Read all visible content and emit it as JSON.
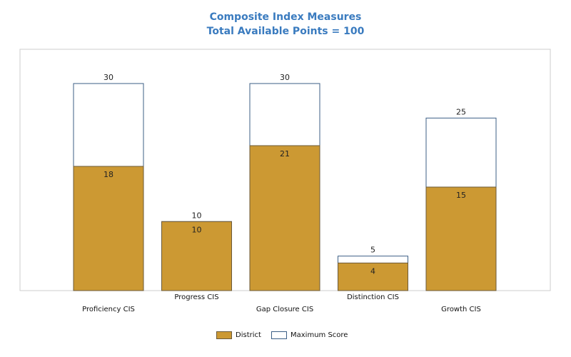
{
  "chart_data": {
    "type": "bar",
    "title": "Composite Index Measures",
    "subtitle": "Total Available Points = 100",
    "categories": [
      "Proficiency CIS",
      "Progress CIS",
      "Gap Closure CIS",
      "Distinction CIS",
      "Growth CIS"
    ],
    "series": [
      {
        "name": "District",
        "values": [
          18,
          10,
          21,
          4,
          15
        ],
        "color": "#cc9933"
      },
      {
        "name": "Maximum Score",
        "values": [
          30,
          10,
          30,
          5,
          25
        ],
        "color": "#ffffff"
      }
    ],
    "ylim": [
      0,
      35
    ],
    "xlabel": "",
    "ylabel": "",
    "grid": false,
    "legend": "bottom",
    "colors": {
      "district": "#cc9933",
      "max_border": "#3c5f86",
      "title": "#3a7bbf",
      "frame": "#cccccc"
    }
  }
}
